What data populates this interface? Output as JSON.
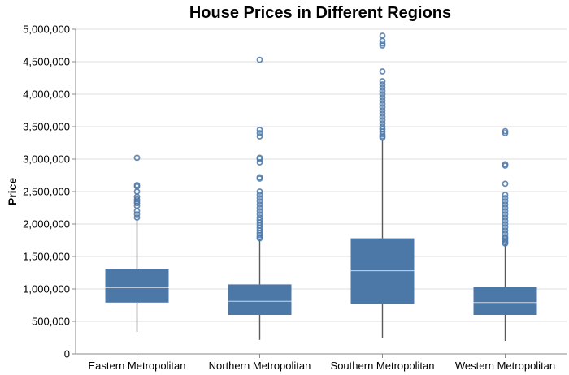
{
  "chart_data": {
    "type": "boxplot",
    "title": "House Prices in Different Regions",
    "xlabel": "",
    "ylabel": "Price",
    "ylim": [
      0,
      5000000
    ],
    "yticks": [
      "0",
      "500,000",
      "1,000,000",
      "1,500,000",
      "2,000,000",
      "2,500,000",
      "3,000,000",
      "3,500,000",
      "4,000,000",
      "4,500,000",
      "5,000,000"
    ],
    "grid": true,
    "color": "#4c78a8",
    "categories": [
      "Eastern Metropolitan",
      "Northern Metropolitan",
      "Southern Metropolitan",
      "Western Metropolitan"
    ],
    "boxes": [
      {
        "min": 340000,
        "q1": 790000,
        "median": 1020000,
        "q3": 1300000,
        "max": 2080000,
        "outliers": [
          2100000,
          2150000,
          2200000,
          2280000,
          2320000,
          2350000,
          2380000,
          2420000,
          2500000,
          2580000,
          2600000,
          3020000
        ]
      },
      {
        "min": 215000,
        "q1": 600000,
        "median": 810000,
        "q3": 1070000,
        "max": 1770000,
        "outliers": [
          1780000,
          1800000,
          1830000,
          1860000,
          1900000,
          1940000,
          1980000,
          2020000,
          2060000,
          2100000,
          2150000,
          2200000,
          2250000,
          2300000,
          2350000,
          2400000,
          2450000,
          2500000,
          2700000,
          2720000,
          2950000,
          3000000,
          3020000,
          3350000,
          3400000,
          3450000,
          4530000
        ]
      },
      {
        "min": 250000,
        "q1": 770000,
        "median": 1280000,
        "q3": 1780000,
        "max": 3300000,
        "outliers": [
          3330000,
          3350000,
          3380000,
          3420000,
          3460000,
          3500000,
          3550000,
          3600000,
          3650000,
          3700000,
          3750000,
          3800000,
          3850000,
          3900000,
          3950000,
          4000000,
          4050000,
          4100000,
          4150000,
          4200000,
          4350000,
          4750000,
          4780000,
          4820000,
          4900000
        ]
      },
      {
        "min": 200000,
        "q1": 600000,
        "median": 790000,
        "q3": 1030000,
        "max": 1690000,
        "outliers": [
          1700000,
          1720000,
          1750000,
          1780000,
          1800000,
          1850000,
          1900000,
          1950000,
          2000000,
          2050000,
          2100000,
          2150000,
          2200000,
          2250000,
          2300000,
          2350000,
          2400000,
          2450000,
          2620000,
          2900000,
          2920000,
          3400000,
          3430000
        ]
      }
    ]
  }
}
